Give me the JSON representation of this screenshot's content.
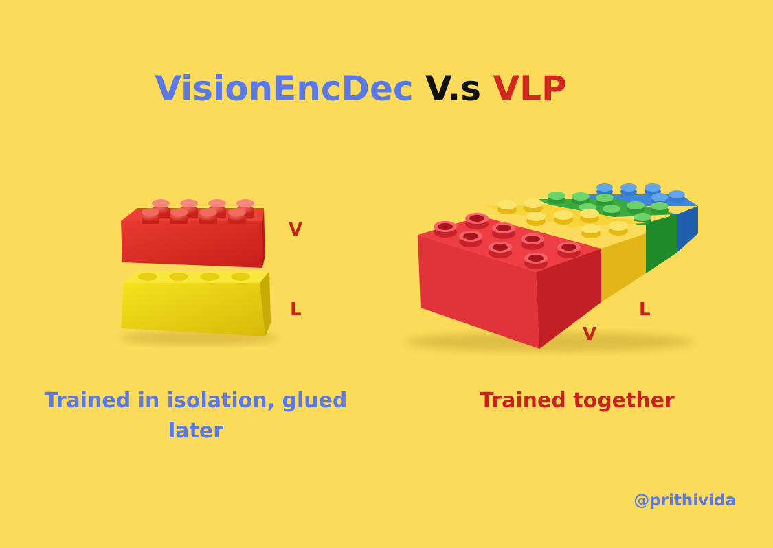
{
  "title": {
    "part1": "VisionEncDec",
    "part2": "V.s",
    "part3": "VLP",
    "colors": {
      "part1": "#5b79e6",
      "part2": "#111111",
      "part3": "#d3261e"
    }
  },
  "left": {
    "top_brick_label": "V",
    "bottom_brick_label": "L",
    "caption": "Trained in isolation, glued later",
    "brick_colors": [
      "#e02a25",
      "#f0d911"
    ]
  },
  "right": {
    "front_label": "V",
    "side_label": "L",
    "caption": "Trained together",
    "brick_colors": [
      "#e8333a",
      "#f4cd1f",
      "#2ea33a",
      "#2a6fc4"
    ]
  },
  "handle": "@prithivida",
  "background_color": "#fddb5a"
}
